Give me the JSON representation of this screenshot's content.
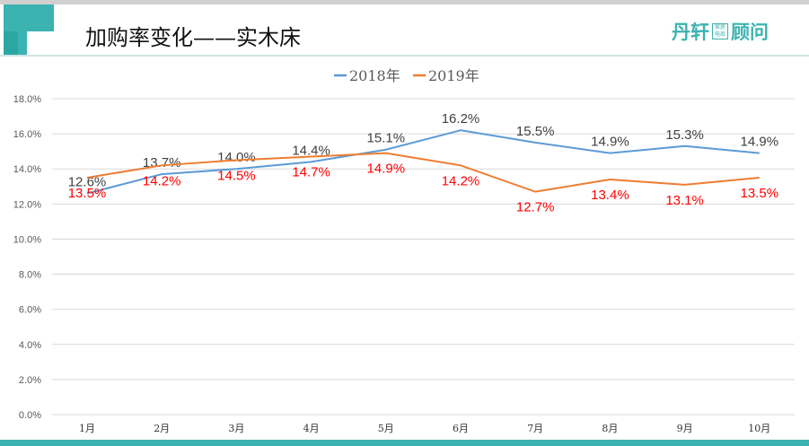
{
  "header": {
    "title": "加购率变化——实木床",
    "logo_text_1": "丹轩",
    "logo_box": "家居电商",
    "logo_text_2": "顾问"
  },
  "colors": {
    "accent": "#3bb3b0",
    "s2018": "#5b9bd5",
    "s2019": "#ed7d31",
    "label2018": "#404040",
    "label2019": "#ff0000"
  },
  "chart_data": {
    "type": "line",
    "categories": [
      "1月",
      "2月",
      "3月",
      "4月",
      "5月",
      "6月",
      "7月",
      "8月",
      "9月",
      "10月"
    ],
    "series": [
      {
        "name": "2018年",
        "values": [
          12.6,
          13.7,
          14.0,
          14.4,
          15.1,
          16.2,
          15.5,
          14.9,
          15.3,
          14.9
        ],
        "labels": [
          "12.6%",
          "13.7%",
          "14.0%",
          "14.4%",
          "15.1%",
          "16.2%",
          "15.5%",
          "14.9%",
          "15.3%",
          "14.9%"
        ]
      },
      {
        "name": "2019年",
        "values": [
          13.5,
          14.2,
          14.5,
          14.7,
          14.9,
          14.2,
          12.7,
          13.4,
          13.1,
          13.5
        ],
        "labels": [
          "13.5%",
          "14.2%",
          "14.5%",
          "14.7%",
          "14.9%",
          "14.2%",
          "12.7%",
          "13.4%",
          "13.1%",
          "13.5%"
        ]
      }
    ],
    "ylim": [
      0,
      18
    ],
    "yticks": [
      "0.0%",
      "2.0%",
      "4.0%",
      "6.0%",
      "8.0%",
      "10.0%",
      "12.0%",
      "14.0%",
      "16.0%",
      "18.0%"
    ],
    "grid": true,
    "legend": "top"
  }
}
